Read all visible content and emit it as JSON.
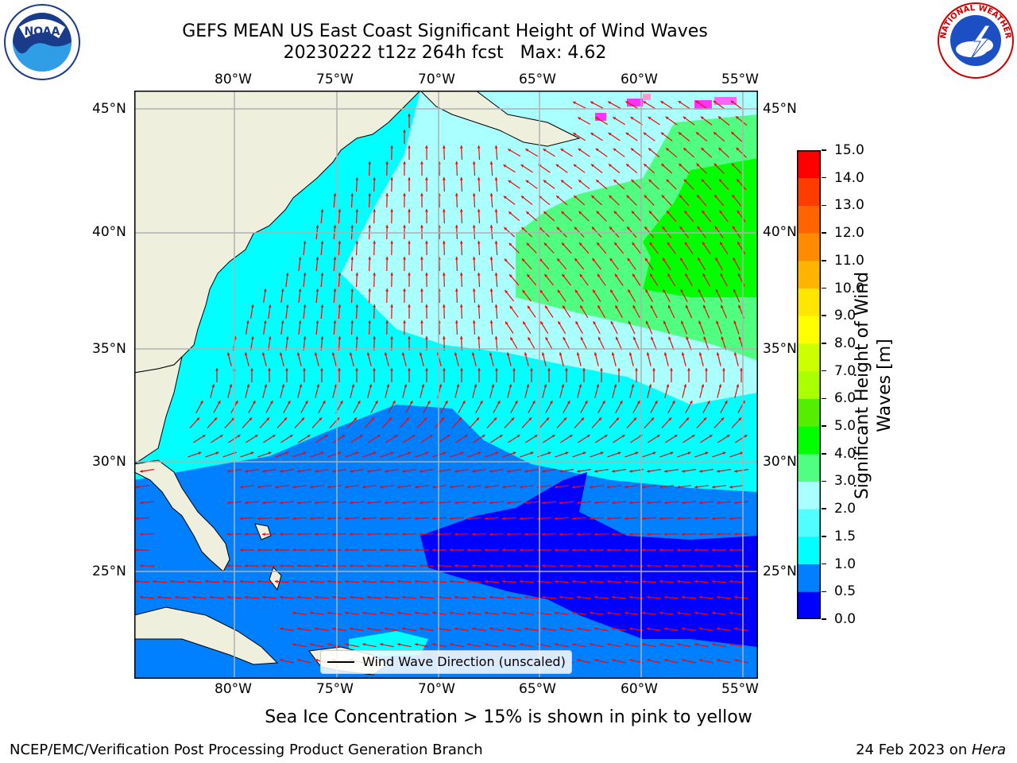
{
  "title": {
    "line1": "GEFS MEAN US East Coast Significant Height of Wind Waves",
    "line2": "20230222 t12z 264h fcst   Max: 4.62"
  },
  "map": {
    "lon_labels": [
      "80°W",
      "75°W",
      "70°W",
      "65°W",
      "60°W",
      "55°W"
    ],
    "lat_labels": [
      "45°N",
      "40°N",
      "35°N",
      "30°N",
      "25°N"
    ],
    "land_color": "#efefde",
    "arrow_color": "#ff0000",
    "grid": true
  },
  "colorbar": {
    "label": "Significant Height of Wind Waves [m]",
    "label_lines": [
      "Significant Height of Wind",
      "Waves [m]"
    ],
    "ticks": [
      "0.0",
      "0.5",
      "1.0",
      "1.5",
      "2.0",
      "3.0",
      "4.0",
      "5.0",
      "6.0",
      "7.0",
      "8.0",
      "9.0",
      "10.0",
      "11.0",
      "12.0",
      "13.0",
      "14.0",
      "15.0"
    ],
    "colors": [
      "#0000ff",
      "#0080ff",
      "#00ffff",
      "#50ffff",
      "#aaffff",
      "#50ff80",
      "#00ff00",
      "#55ee00",
      "#aaff00",
      "#ccff00",
      "#ffff00",
      "#ffe600",
      "#ffb400",
      "#ff8c00",
      "#ff6400",
      "#ff3c00",
      "#ff0000"
    ]
  },
  "legend": {
    "label": "Wind Wave Direction (unscaled)"
  },
  "note": "Sea Ice Concentration > 15% is shown in pink to yellow",
  "footer": {
    "left": "NCEP/EMC/Verification Post Processing Product Generation Branch",
    "right_prefix": "24 Feb 2023 on ",
    "right_host": "Hera"
  },
  "logos": {
    "noaa_text": "NOAA",
    "nws_text": "NATIONAL WEATHER SERVICE"
  }
}
